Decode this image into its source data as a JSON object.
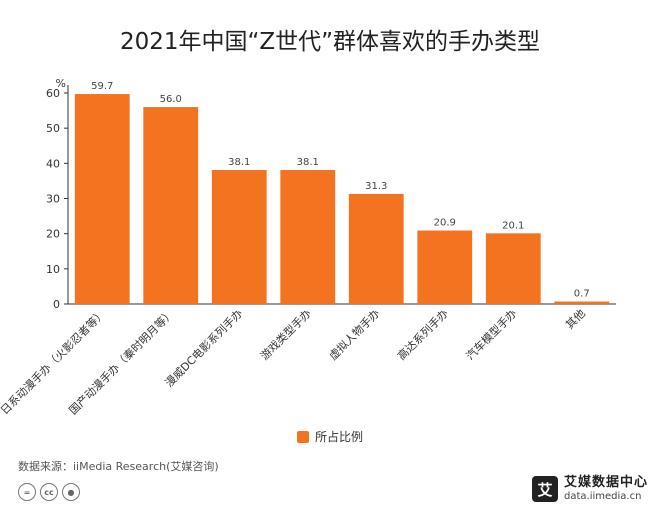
{
  "chart_data": {
    "type": "bar",
    "title": "2021年中国“Z世代”群体喜欢的手办类型",
    "ylabel": "%",
    "xlabel": "",
    "ylim": [
      0,
      60
    ],
    "yticks": [
      0,
      10,
      20,
      30,
      40,
      50,
      60
    ],
    "categories": [
      "日系动漫手办（火影忍者等）",
      "国产动漫手办（秦时明月等）",
      "漫威DC电影系列手办",
      "游戏类型手办",
      "虚拟人物手办",
      "高达系列手办",
      "汽车模型手办",
      "其他"
    ],
    "series": [
      {
        "name": "所占比例",
        "values": [
          59.7,
          56.0,
          38.1,
          38.1,
          31.3,
          20.9,
          20.1,
          0.7
        ],
        "color": "#F47320"
      }
    ],
    "value_labels": [
      "59.7",
      "56.0",
      "38.1",
      "38.1",
      "31.3",
      "20.9",
      "20.1",
      "0.7"
    ],
    "grid": false,
    "legend_position": "bottom-center"
  },
  "footer": {
    "source": "数据来源：iiMedia Research(艾媒咨询)",
    "brand_logo": "艾",
    "brand_name": "艾媒数据中心",
    "brand_url": "data.iimedia.cn",
    "license_icons": [
      "equals-icon",
      "cc-icon",
      "person-icon"
    ]
  },
  "colors": {
    "bar": "#F47320",
    "axis": "#333333"
  }
}
